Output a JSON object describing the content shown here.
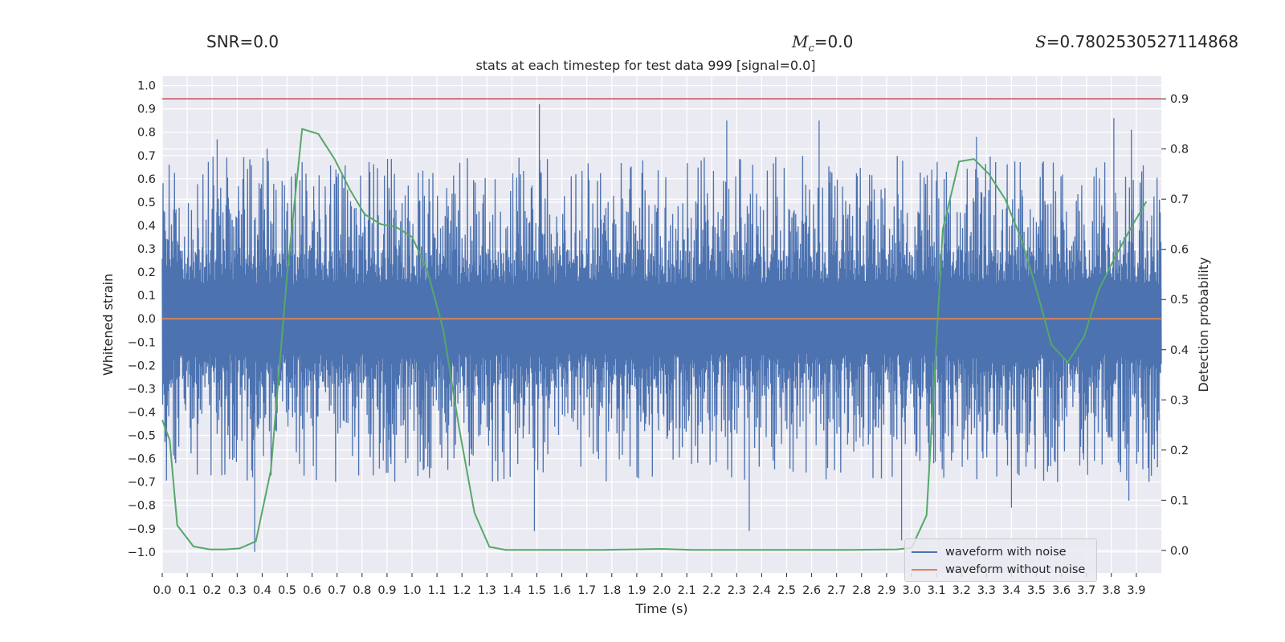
{
  "header": {
    "snr": "SNR=0.0",
    "mc_label": "M",
    "mc_sub": "c",
    "mc_value": "=0.0",
    "s_label": "S",
    "s_value": "=0.7802530527114868"
  },
  "chart_data": {
    "type": "line",
    "title": "stats at each timestep for test data 999 [signal=0.0]",
    "xlabel": "Time (s)",
    "ylabel": "Whitened strain",
    "y2label": "Detection probability",
    "xlim": [
      0.0,
      4.0
    ],
    "ylim": [
      -1.09,
      1.04
    ],
    "y2lim": [
      -0.045,
      0.945
    ],
    "xticks": [
      "0.0",
      "0.1",
      "0.2",
      "0.3",
      "0.4",
      "0.5",
      "0.6",
      "0.7",
      "0.8",
      "0.9",
      "1.0",
      "1.1",
      "1.2",
      "1.3",
      "1.4",
      "1.5",
      "1.6",
      "1.7",
      "1.8",
      "1.9",
      "2.0",
      "2.1",
      "2.2",
      "2.3",
      "2.4",
      "2.5",
      "2.6",
      "2.7",
      "2.8",
      "2.9",
      "3.0",
      "3.1",
      "3.2",
      "3.3",
      "3.4",
      "3.5",
      "3.6",
      "3.7",
      "3.8",
      "3.9"
    ],
    "yticks": [
      "1.0",
      "0.9",
      "0.8",
      "0.7",
      "0.6",
      "0.5",
      "0.4",
      "0.3",
      "0.2",
      "0.1",
      "0.0",
      "−0.1",
      "−0.2",
      "−0.3",
      "−0.4",
      "−0.5",
      "−0.6",
      "−0.7",
      "−0.8",
      "−0.9",
      "−1.0"
    ],
    "y2ticks": [
      "0.9",
      "0.8",
      "0.7",
      "0.6",
      "0.5",
      "0.4",
      "0.3",
      "0.2",
      "0.1",
      "0.0"
    ],
    "grid": true,
    "legend_position": "bottom-right",
    "colors": {
      "noisy": "#4c72b0",
      "clean": "#dd8452",
      "probability": "#55a868",
      "threshold": "#c44e52",
      "background": "#eaeaf2",
      "grid": "#ffffff"
    },
    "threshold": {
      "axis": "y2",
      "value": 0.9
    },
    "series": [
      {
        "name": "waveform with noise",
        "axis": "y",
        "description_range": [
          -1.0,
          0.92
        ],
        "peaks": [
          {
            "x": 1.51,
            "y": 0.92
          },
          {
            "x": 3.81,
            "y": 0.86
          },
          {
            "x": 2.26,
            "y": 0.85
          },
          {
            "x": 2.63,
            "y": 0.85
          },
          {
            "x": 3.88,
            "y": 0.81
          },
          {
            "x": 3.26,
            "y": 0.78
          },
          {
            "x": 0.22,
            "y": 0.77
          },
          {
            "x": 0.42,
            "y": 0.73
          },
          {
            "x": 0.37,
            "y": -1.0
          },
          {
            "x": 2.96,
            "y": -0.95
          },
          {
            "x": 1.49,
            "y": -0.91
          },
          {
            "x": 2.35,
            "y": -0.91
          },
          {
            "x": 3.4,
            "y": -0.81
          },
          {
            "x": 3.87,
            "y": -0.78
          }
        ]
      },
      {
        "name": "waveform without noise",
        "axis": "y",
        "x": [
          0.0,
          4.0
        ],
        "y": [
          0.0,
          0.0
        ]
      },
      {
        "name": "",
        "axis": "y2",
        "x": [
          0.0,
          0.03,
          0.06,
          0.125,
          0.19,
          0.25,
          0.31,
          0.375,
          0.435,
          0.5,
          0.56,
          0.625,
          0.69,
          0.75,
          0.81,
          0.875,
          0.935,
          1.0,
          1.06,
          1.125,
          1.19,
          1.25,
          1.31,
          1.375,
          1.5,
          1.75,
          2.0,
          2.125,
          2.5,
          2.75,
          2.94,
          3.0,
          3.06,
          3.125,
          3.19,
          3.25,
          3.31,
          3.375,
          3.44,
          3.5,
          3.56,
          3.625,
          3.69,
          3.75,
          3.81,
          3.875,
          3.94
        ],
        "y": [
          0.26,
          0.22,
          0.05,
          0.008,
          0.002,
          0.002,
          0.004,
          0.018,
          0.16,
          0.55,
          0.84,
          0.83,
          0.78,
          0.72,
          0.67,
          0.65,
          0.645,
          0.625,
          0.56,
          0.44,
          0.24,
          0.075,
          0.007,
          0.001,
          0.001,
          0.001,
          0.003,
          0.001,
          0.001,
          0.001,
          0.002,
          0.005,
          0.07,
          0.64,
          0.775,
          0.78,
          0.75,
          0.7,
          0.62,
          0.52,
          0.41,
          0.375,
          0.425,
          0.52,
          0.58,
          0.64,
          0.695
        ]
      }
    ]
  }
}
